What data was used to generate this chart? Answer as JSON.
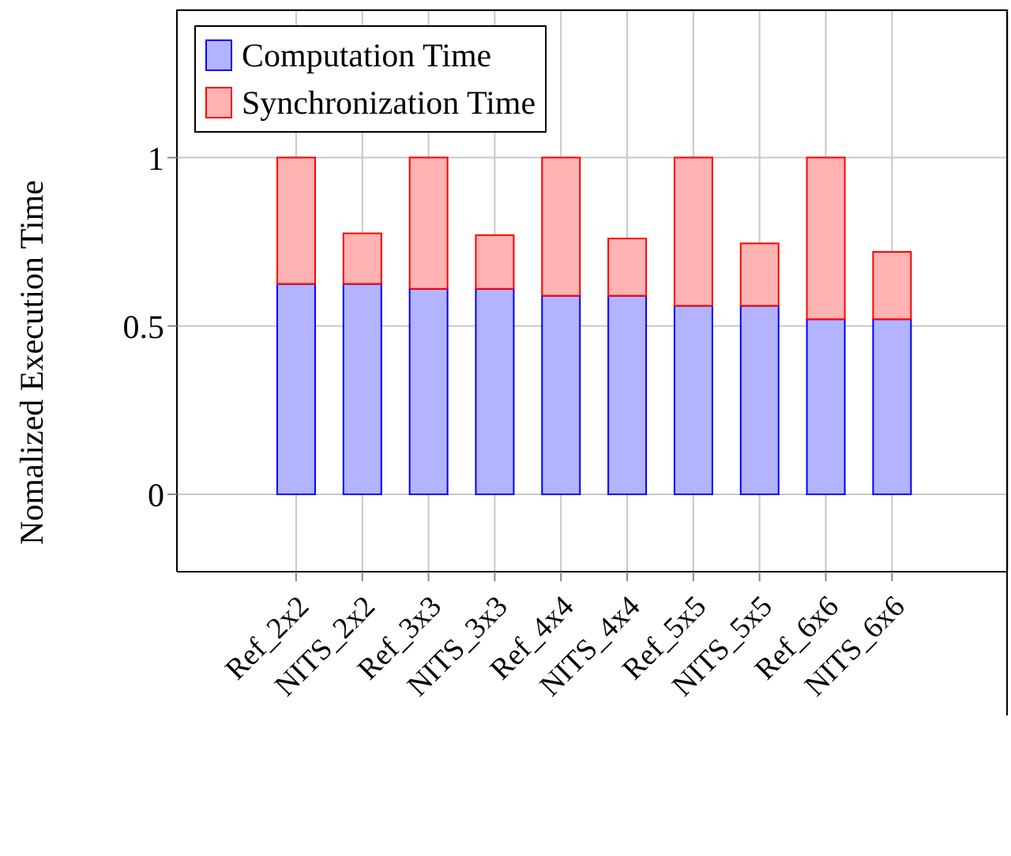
{
  "chart_data": {
    "type": "bar",
    "stacked": true,
    "ylabel": "Nomalized Execution Time",
    "categories": [
      "Ref_2x2",
      "NITS_2x2",
      "Ref_3x3",
      "NITS_3x3",
      "Ref_4x4",
      "NITS_4x4",
      "Ref_5x5",
      "NITS_5x5",
      "Ref_6x6",
      "NITS_6x6"
    ],
    "series": [
      {
        "name": "Computation Time",
        "color": "#b3b3ff",
        "values": [
          0.625,
          0.625,
          0.61,
          0.61,
          0.59,
          0.59,
          0.56,
          0.56,
          0.52,
          0.52
        ]
      },
      {
        "name": "Synchronization Time",
        "color": "#ffb3b3",
        "values": [
          0.375,
          0.15,
          0.39,
          0.16,
          0.41,
          0.17,
          0.44,
          0.185,
          0.48,
          0.2
        ]
      }
    ],
    "ylim": [
      -0.23,
      1.44
    ],
    "yticks": [
      0,
      0.5,
      1
    ],
    "grid": true,
    "legend": "top left"
  }
}
